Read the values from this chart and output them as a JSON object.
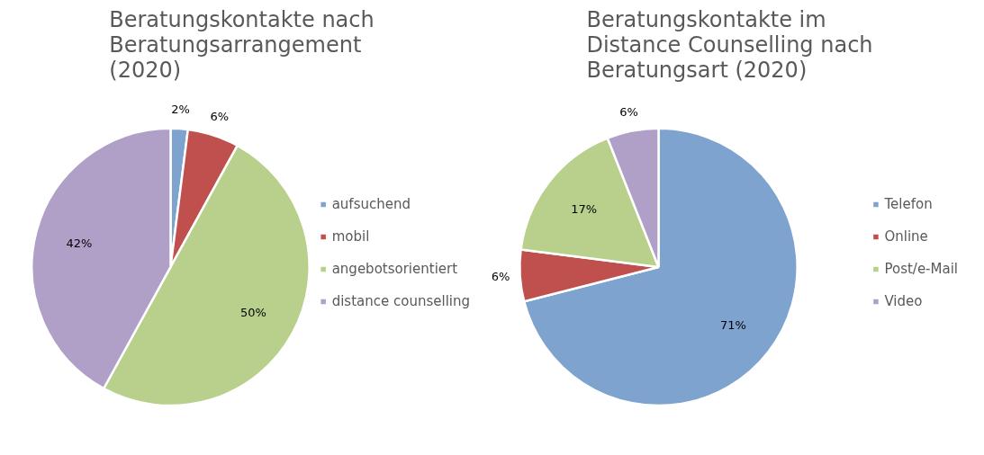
{
  "chart_data": [
    {
      "type": "pie",
      "title": "Beratungskontakte nach Beratungsarrangement (2020)",
      "categories": [
        "aufsuchend",
        "mobil",
        "angebotsorientiert",
        "distance counselling"
      ],
      "values": [
        2,
        6,
        50,
        42
      ],
      "value_labels": [
        "2%",
        "6%",
        "50%",
        "42%"
      ],
      "colors": [
        "#7fa3cf",
        "#c0504d",
        "#b8d08b",
        "#b0a0c8"
      ],
      "legend": "right"
    },
    {
      "type": "pie",
      "title": "Beratungskontakte im Distance Counselling nach Beratungsart (2020)",
      "categories": [
        "Telefon",
        "Online",
        "Post/e-Mail",
        "Video"
      ],
      "values": [
        71,
        6,
        17,
        6
      ],
      "value_labels": [
        "71%",
        "6%",
        "17%",
        "6%"
      ],
      "colors": [
        "#7fa3cf",
        "#c0504d",
        "#b8d08b",
        "#b0a0c8"
      ],
      "legend": "right"
    }
  ]
}
